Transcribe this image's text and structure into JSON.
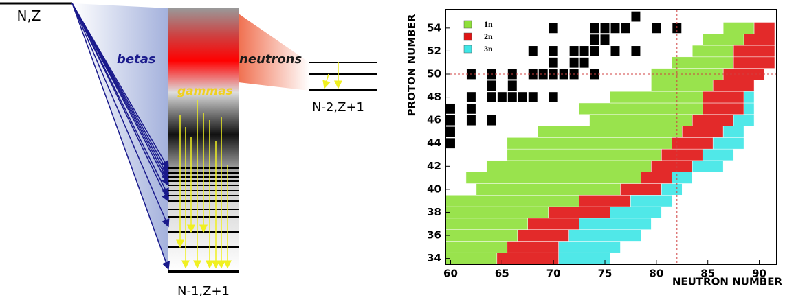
{
  "level_scheme": {
    "parent": "N,Z",
    "betas": "betas",
    "neutrons": "neutrons",
    "gammas": "gammas",
    "daughter_n": "N-2,Z+1",
    "daughter": "N-1,Z+1"
  },
  "chart_data": {
    "type": "nuclide-map",
    "xlabel": "NEUTRON NUMBER",
    "ylabel": "PROTON NUMBER",
    "xlim": [
      59.5,
      91.7
    ],
    "ylim": [
      33.5,
      55.6
    ],
    "xticks": [
      60,
      65,
      70,
      75,
      80,
      85,
      90
    ],
    "yticks": [
      34,
      36,
      38,
      40,
      42,
      44,
      46,
      48,
      50,
      52,
      54
    ],
    "series": [
      {
        "name": "1n",
        "color": "#8ee03a"
      },
      {
        "name": "2n",
        "color": "#e01414"
      },
      {
        "name": "3n",
        "color": "#3ee6e6"
      }
    ],
    "magic_z": 50,
    "magic_n": 82,
    "stable_color": "#000000",
    "stable_cells": [
      [
        78,
        55
      ],
      [
        70,
        54
      ],
      [
        74,
        54
      ],
      [
        75,
        54
      ],
      [
        76,
        54
      ],
      [
        77,
        54
      ],
      [
        80,
        54
      ],
      [
        82,
        54
      ],
      [
        74,
        53
      ],
      [
        75,
        53
      ],
      [
        68,
        52
      ],
      [
        70,
        52
      ],
      [
        72,
        52
      ],
      [
        73,
        52
      ],
      [
        74,
        52
      ],
      [
        76,
        52
      ],
      [
        78,
        52
      ],
      [
        70,
        51
      ],
      [
        72,
        51
      ],
      [
        73,
        51
      ],
      [
        62,
        50
      ],
      [
        64,
        50
      ],
      [
        66,
        50
      ],
      [
        68,
        50
      ],
      [
        69,
        50
      ],
      [
        70,
        50
      ],
      [
        71,
        50
      ],
      [
        72,
        50
      ],
      [
        74,
        50
      ],
      [
        64,
        49
      ],
      [
        66,
        49
      ],
      [
        62,
        48
      ],
      [
        64,
        48
      ],
      [
        65,
        48
      ],
      [
        66,
        48
      ],
      [
        67,
        48
      ],
      [
        68,
        48
      ],
      [
        70,
        48
      ],
      [
        60,
        47
      ],
      [
        62,
        47
      ],
      [
        60,
        46
      ],
      [
        62,
        46
      ],
      [
        64,
        46
      ],
      [
        60,
        45
      ],
      [
        60,
        44
      ]
    ],
    "rows": [
      {
        "z": 34,
        "runs": [
          [
            60,
            64,
            "1n"
          ],
          [
            65,
            70,
            "2n"
          ],
          [
            71,
            75,
            "3n"
          ]
        ]
      },
      {
        "z": 35,
        "runs": [
          [
            60,
            65,
            "1n"
          ],
          [
            66,
            70,
            "2n"
          ],
          [
            71,
            76,
            "3n"
          ]
        ]
      },
      {
        "z": 36,
        "runs": [
          [
            60,
            66,
            "1n"
          ],
          [
            67,
            71,
            "2n"
          ],
          [
            72,
            78,
            "3n"
          ]
        ]
      },
      {
        "z": 37,
        "runs": [
          [
            60,
            67,
            "1n"
          ],
          [
            68,
            72,
            "2n"
          ],
          [
            73,
            79,
            "3n"
          ]
        ]
      },
      {
        "z": 38,
        "runs": [
          [
            60,
            69,
            "1n"
          ],
          [
            70,
            75,
            "2n"
          ],
          [
            76,
            80,
            "3n"
          ]
        ]
      },
      {
        "z": 39,
        "runs": [
          [
            60,
            72,
            "1n"
          ],
          [
            73,
            77,
            "2n"
          ],
          [
            78,
            81,
            "3n"
          ]
        ]
      },
      {
        "z": 40,
        "runs": [
          [
            63,
            76,
            "1n"
          ],
          [
            77,
            80,
            "2n"
          ],
          [
            81,
            82,
            "3n"
          ]
        ]
      },
      {
        "z": 41,
        "runs": [
          [
            62,
            78,
            "1n"
          ],
          [
            79,
            81,
            "2n"
          ],
          [
            82,
            83,
            "3n"
          ]
        ]
      },
      {
        "z": 42,
        "runs": [
          [
            64,
            79,
            "1n"
          ],
          [
            80,
            83,
            "2n"
          ],
          [
            84,
            86,
            "3n"
          ]
        ]
      },
      {
        "z": 43,
        "runs": [
          [
            66,
            80,
            "1n"
          ],
          [
            81,
            84,
            "2n"
          ],
          [
            85,
            87,
            "3n"
          ]
        ]
      },
      {
        "z": 44,
        "runs": [
          [
            66,
            81,
            "1n"
          ],
          [
            82,
            85,
            "2n"
          ],
          [
            86,
            88,
            "3n"
          ]
        ]
      },
      {
        "z": 45,
        "runs": [
          [
            69,
            82,
            "1n"
          ],
          [
            83,
            86,
            "2n"
          ],
          [
            87,
            88,
            "3n"
          ]
        ]
      },
      {
        "z": 46,
        "runs": [
          [
            74,
            83,
            "1n"
          ],
          [
            84,
            87,
            "2n"
          ],
          [
            88,
            89,
            "3n"
          ]
        ]
      },
      {
        "z": 47,
        "runs": [
          [
            73,
            84,
            "1n"
          ],
          [
            85,
            88,
            "2n"
          ],
          [
            89,
            89,
            "3n"
          ]
        ]
      },
      {
        "z": 48,
        "runs": [
          [
            76,
            84,
            "1n"
          ],
          [
            85,
            88,
            "2n"
          ],
          [
            89,
            89,
            "3n"
          ]
        ]
      },
      {
        "z": 49,
        "runs": [
          [
            80,
            85,
            "1n"
          ],
          [
            86,
            89,
            "2n"
          ]
        ]
      },
      {
        "z": 50,
        "runs": [
          [
            80,
            86,
            "1n"
          ],
          [
            87,
            90,
            "2n"
          ]
        ]
      },
      {
        "z": 51,
        "runs": [
          [
            82,
            87,
            "1n"
          ],
          [
            88,
            91,
            "2n"
          ]
        ]
      },
      {
        "z": 52,
        "runs": [
          [
            84,
            87,
            "1n"
          ],
          [
            88,
            91,
            "2n"
          ]
        ]
      },
      {
        "z": 53,
        "runs": [
          [
            85,
            88,
            "1n"
          ],
          [
            89,
            91,
            "2n"
          ]
        ]
      },
      {
        "z": 54,
        "runs": [
          [
            87,
            89,
            "1n"
          ],
          [
            90,
            91,
            "2n"
          ]
        ]
      }
    ]
  }
}
